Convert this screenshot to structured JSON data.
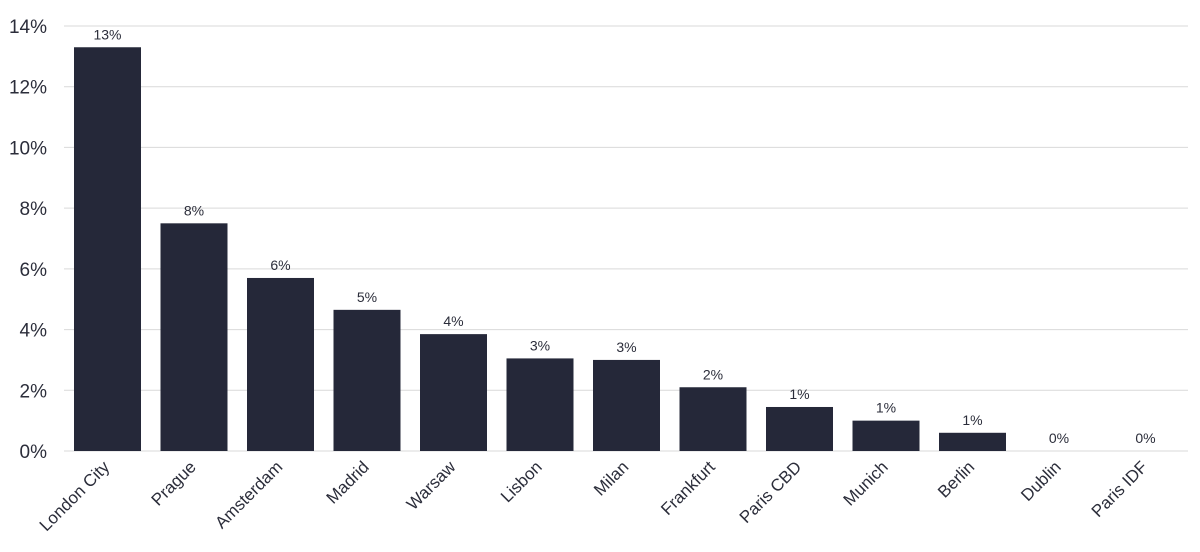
{
  "chart_data": {
    "type": "bar",
    "categories": [
      "London City",
      "Prague",
      "Amsterdam",
      "Madrid",
      "Warsaw",
      "Lisbon",
      "Milan",
      "Frankfurt",
      "Paris CBD",
      "Munich",
      "Berlin",
      "Dublin",
      "Paris IDF"
    ],
    "values": [
      13.3,
      7.5,
      5.7,
      4.65,
      3.85,
      3.05,
      3.0,
      2.1,
      1.45,
      1.0,
      0.6,
      0,
      0
    ],
    "data_labels": [
      "13%",
      "8%",
      "6%",
      "5%",
      "4%",
      "3%",
      "3%",
      "2%",
      "1%",
      "1%",
      "1%",
      "0%",
      "0%"
    ],
    "y_ticks": [
      0,
      2,
      4,
      6,
      8,
      10,
      12,
      14
    ],
    "y_tick_labels": [
      "0%",
      "2%",
      "4%",
      "6%",
      "8%",
      "10%",
      "12%",
      "14%"
    ],
    "ylim": [
      0,
      14
    ],
    "grid": true,
    "bar_color": "#252839",
    "title": "",
    "xlabel": "",
    "ylabel": ""
  }
}
